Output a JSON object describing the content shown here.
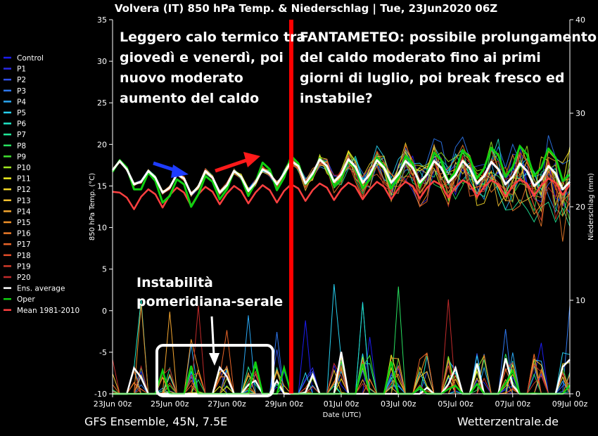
{
  "chart_data": {
    "type": "line",
    "title": "Volvera  (IT)  850 hPa Temp. & Niederschlag | Tue, 23Jun2020 06Z",
    "xlabel": "Date (UTC)",
    "ylabel_left": "850 hPa Temp. (°C)",
    "ylabel_right": "Niederschlag (mm)",
    "ylim_left": [
      -10,
      35
    ],
    "ylim_right": [
      0,
      40
    ],
    "yticks_left": [
      "35",
      "30",
      "25",
      "20",
      "15",
      "10",
      "5",
      "0",
      "-5",
      "-10"
    ],
    "yticks_right": [
      "40",
      "30",
      "20",
      "10",
      "0"
    ],
    "x_tick_labels": [
      "23Jun 00z",
      "25Jun 00z",
      "27Jun 00z",
      "29Jun 00z",
      "01Jul 00z",
      "03Jul 00z",
      "05Jul 00z",
      "07Jul 00z",
      "09Jul 00z"
    ],
    "x_range_days": [
      0,
      16
    ],
    "step_hours": 6,
    "grid": false,
    "legend_placement": "left",
    "legend": [
      {
        "name": "Control",
        "color": "#1c1cf0"
      },
      {
        "name": "P1",
        "color": "#2a2ae6"
      },
      {
        "name": "P2",
        "color": "#3050e8"
      },
      {
        "name": "P3",
        "color": "#2e78f0"
      },
      {
        "name": "P4",
        "color": "#2aa6f2"
      },
      {
        "name": "P5",
        "color": "#27d0f0"
      },
      {
        "name": "P6",
        "color": "#20e8c8"
      },
      {
        "name": "P7",
        "color": "#20e898"
      },
      {
        "name": "P8",
        "color": "#28e060"
      },
      {
        "name": "P9",
        "color": "#40e030"
      },
      {
        "name": "P10",
        "color": "#a0e820"
      },
      {
        "name": "P11",
        "color": "#f0f020"
      },
      {
        "name": "P12",
        "color": "#f4d828"
      },
      {
        "name": "P13",
        "color": "#f4c030"
      },
      {
        "name": "P14",
        "color": "#f4a630"
      },
      {
        "name": "P15",
        "color": "#f09028"
      },
      {
        "name": "P16",
        "color": "#ec7a28"
      },
      {
        "name": "P17",
        "color": "#e86428"
      },
      {
        "name": "P18",
        "color": "#e04c28"
      },
      {
        "name": "P19",
        "color": "#d03a28"
      },
      {
        "name": "P20",
        "color": "#c02a2a"
      },
      {
        "name": "Ens. average",
        "color": "#ffffff"
      },
      {
        "name": "Oper",
        "color": "#10d010"
      },
      {
        "name": "Mean 1981-2010",
        "color": "#ff4040"
      }
    ],
    "series": [
      {
        "name": "Ens. average",
        "color": "#ffffff",
        "temperature": [
          16.9,
          18,
          17,
          15.2,
          15.5,
          16.8,
          16,
          14.2,
          14.8,
          16.4,
          15.9,
          14,
          14.9,
          16.8,
          16,
          14.2,
          15.1,
          16.8,
          16.1,
          14.4,
          15.4,
          17,
          16.5,
          15.2,
          16.5,
          18,
          17.4,
          15.3,
          16.5,
          18.2,
          17.4,
          15.5,
          16.4,
          18.2,
          17.3,
          15.4,
          16.4,
          18.1,
          17.2,
          15.4,
          16.4,
          18,
          17.2,
          15.4,
          16.4,
          18,
          17.2,
          15.4,
          16.3,
          18,
          17.1,
          15.3,
          16.2,
          17.9,
          17,
          15.2,
          16.1,
          17.7,
          16.8,
          15,
          15.8,
          17.4,
          16.5,
          14.6,
          15.5
        ]
      },
      {
        "name": "Oper",
        "color": "#10d010",
        "temperature": [
          16.7,
          18.1,
          17.2,
          14.6,
          14.6,
          16.6,
          15.6,
          13,
          13.8,
          15.8,
          15.2,
          12.5,
          14,
          16.2,
          15.5,
          13.4,
          14.6,
          16.8,
          16,
          13.8,
          15.4,
          17.8,
          17,
          14.5,
          16,
          18.6,
          17.7,
          15.2,
          16.1,
          18.3,
          17.3,
          15,
          15.8,
          18.1,
          17.1,
          14.7,
          15.8,
          18.4,
          17.4,
          14.7,
          16,
          18.6,
          17.7,
          15.1,
          16.4,
          19,
          18.1,
          15.5,
          16.8,
          19.3,
          18.4,
          15.9,
          17.1,
          19.6,
          18.7,
          16.1,
          17.3,
          19.8,
          18.8,
          16.2,
          17.2,
          19.5,
          18.4,
          15.6,
          16.4
        ]
      },
      {
        "name": "Mean 1981-2010",
        "color": "#ff4040",
        "temperature": [
          14.3,
          14.2,
          13.6,
          12.2,
          13.7,
          14.6,
          14,
          12.4,
          13.9,
          14.8,
          14.2,
          12.6,
          14,
          14.9,
          14.3,
          12.8,
          14.1,
          15,
          14.4,
          12.9,
          14.2,
          15.1,
          14.5,
          13,
          14.4,
          15.2,
          14.7,
          13.2,
          14.5,
          15.3,
          14.8,
          13.3,
          14.6,
          15.4,
          14.9,
          13.4,
          14.6,
          15.5,
          14.9,
          13.4,
          14.7,
          15.5,
          15,
          13.5,
          14.8,
          15.6,
          15.1,
          13.6,
          14.9,
          15.7,
          15.2,
          13.7,
          14.9,
          15.7,
          15.2,
          13.7,
          15,
          15.8,
          15.3,
          13.8,
          15.1,
          15.9,
          15.4,
          13.9,
          15.2
        ]
      }
    ],
    "annotations": [
      "Leggero calo termico tra",
      "giovedì e venerdì, poi",
      "nuovo moderato",
      "aumento del caldo",
      "FANTAMETEO: possibile prolungamento",
      "del caldo moderato fino ai primi",
      "giorni di luglio, poi break fresco ed",
      "instabile?",
      "Instabilità",
      "pomeridiana-serale"
    ],
    "vertical_marker_day": 6.1
  },
  "footer": {
    "left": "GFS Ensemble, 45N, 7.5E",
    "right": "Wetterzentrale.de"
  }
}
